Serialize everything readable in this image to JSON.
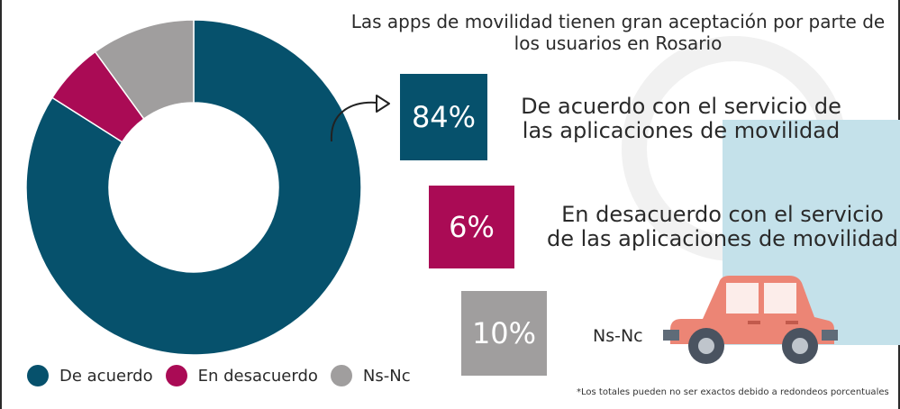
{
  "title": "Las apps de movilidad tienen gran aceptación por parte de los usuarios en Rosario",
  "chart_data": {
    "type": "pie",
    "donut": true,
    "categories": [
      "De acuerdo",
      "En desacuerdo",
      "Ns-Nc"
    ],
    "values": [
      84,
      6,
      10
    ],
    "unit": "%",
    "colors": [
      "#06516c",
      "#aa0b55",
      "#a09e9e"
    ],
    "legend_position": "bottom-left"
  },
  "callouts": {
    "agree": {
      "value": "84%",
      "text": "De acuerdo con el servicio de las aplicaciones de movilidad"
    },
    "disagree": {
      "value": "6%",
      "text": "En desacuerdo con el servicio de las aplicaciones de movilidad"
    },
    "nsnc": {
      "value": "10%",
      "text": "Ns-Nc"
    }
  },
  "legend": {
    "items": [
      {
        "label": "De acuerdo",
        "color": "#06516c"
      },
      {
        "label": "En desacuerdo",
        "color": "#aa0b55"
      },
      {
        "label": "Ns-Nc",
        "color": "#a09e9e"
      }
    ]
  },
  "footnote": "*Los totales pueden no ser exactos debido a redondeos porcentuales",
  "icons": [
    "car-icon",
    "curved-arrow-icon"
  ]
}
